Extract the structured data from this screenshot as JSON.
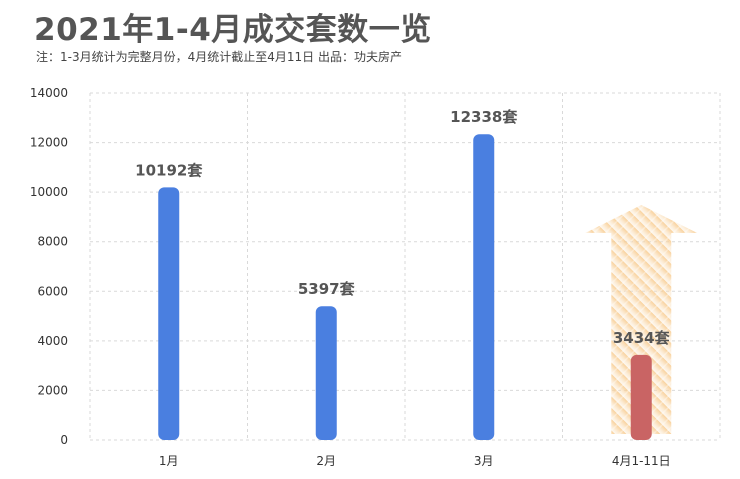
{
  "header": {
    "title": "2021年1-4月成交套数一览",
    "subtitle": "注：1-3月统计为完整月份，4月统计截止至4月11日     出品：功夫房产"
  },
  "chart_data": {
    "type": "bar",
    "categories": [
      "1月",
      "2月",
      "3月",
      "4月1-11日"
    ],
    "values": [
      10192,
      5397,
      12338,
      3434
    ],
    "data_labels": [
      "10192套",
      "5397套",
      "12338套",
      "3434套"
    ],
    "bar_colors": [
      "#4a7fe0",
      "#4a7fe0",
      "#4a7fe0",
      "#c96464"
    ],
    "ylim": [
      0,
      14000
    ],
    "yticks": [
      0,
      2000,
      4000,
      6000,
      8000,
      10000,
      12000,
      14000
    ],
    "grid": true,
    "arrow_color": "#f7c98a"
  }
}
